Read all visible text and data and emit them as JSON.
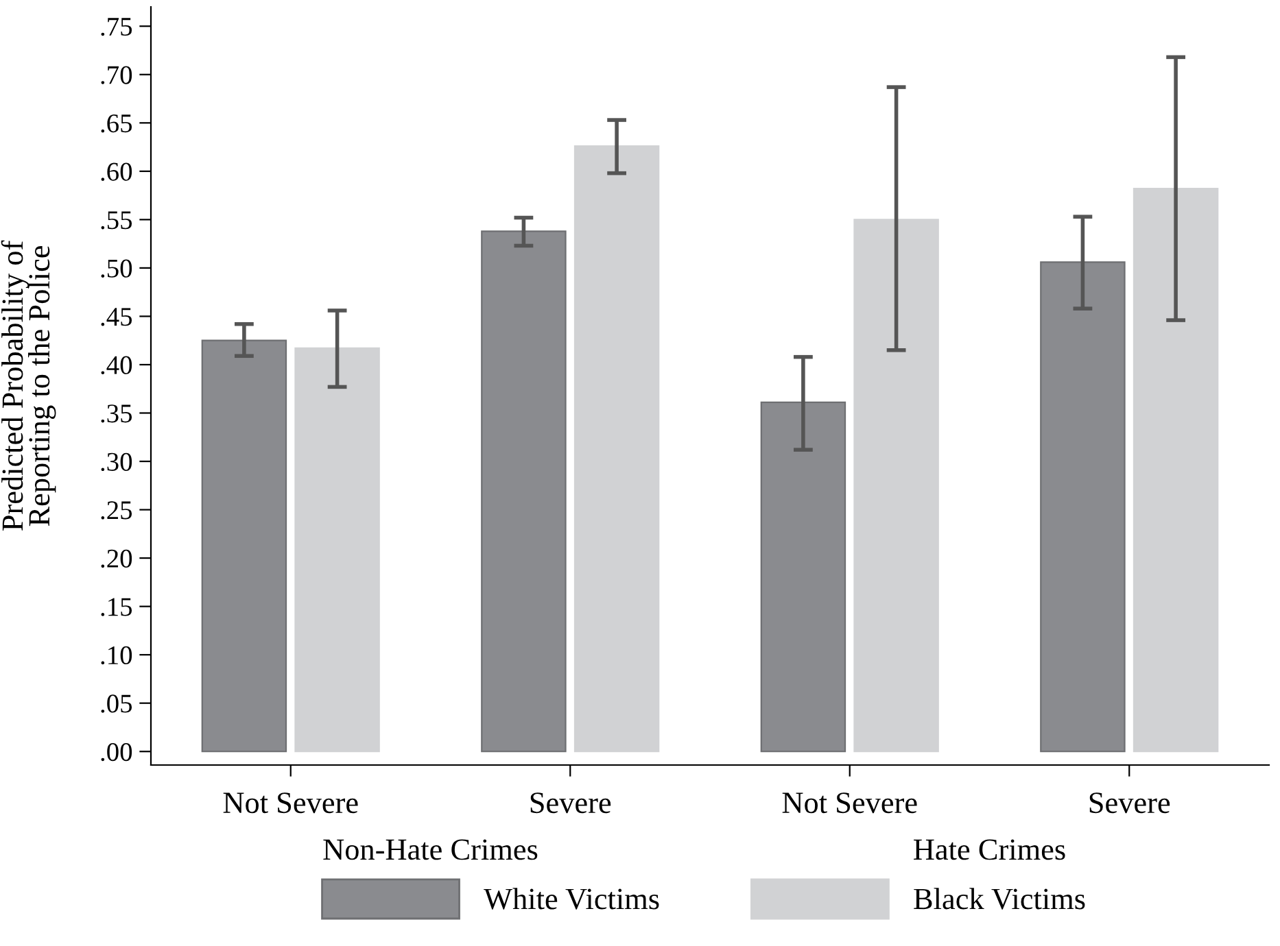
{
  "chart_data": {
    "type": "bar",
    "ylabel": "Predicted Probability of\nReporting to the Police",
    "categories": [
      "Not Severe",
      "Severe",
      "Not Severe",
      "Severe"
    ],
    "annotations": [
      "Non-Hate Crimes",
      "Hate Crimes"
    ],
    "series": [
      {
        "name": "White Victims",
        "color": "#8a8b8f",
        "values": [
          0.425,
          0.538,
          0.361,
          0.506
        ],
        "errors": [
          [
            0.409,
            0.442
          ],
          [
            0.523,
            0.552
          ],
          [
            0.312,
            0.408
          ],
          [
            0.458,
            0.553
          ]
        ]
      },
      {
        "name": "Black Victims",
        "color": "#d1d2d4",
        "values": [
          0.417,
          0.626,
          0.55,
          0.582
        ],
        "errors": [
          [
            0.377,
            0.456
          ],
          [
            0.598,
            0.653
          ],
          [
            0.415,
            0.687
          ],
          [
            0.446,
            0.718
          ]
        ]
      }
    ],
    "ylim": [
      -0.014,
      0.77
    ],
    "yticks": [
      {
        "value": 0,
        "label": ".00"
      },
      {
        "value": 0.05,
        "label": ".05"
      },
      {
        "value": 0.1,
        "label": ".10"
      },
      {
        "value": 0.15,
        "label": ".15"
      },
      {
        "value": 0.2,
        "label": ".20"
      },
      {
        "value": 0.25,
        "label": ".25"
      },
      {
        "value": 0.3,
        "label": ".30"
      },
      {
        "value": 0.35,
        "label": ".35"
      },
      {
        "value": 0.4,
        "label": ".40"
      },
      {
        "value": 0.45,
        "label": ".45"
      },
      {
        "value": 0.5,
        "label": ".50"
      },
      {
        "value": 0.55,
        "label": ".55"
      },
      {
        "value": 0.6,
        "label": ".60"
      },
      {
        "value": 0.65,
        "label": ".65"
      },
      {
        "value": 0.7,
        "label": ".70"
      },
      {
        "value": 0.75,
        "label": ".75"
      }
    ],
    "grid": false,
    "legend": "bottom"
  }
}
